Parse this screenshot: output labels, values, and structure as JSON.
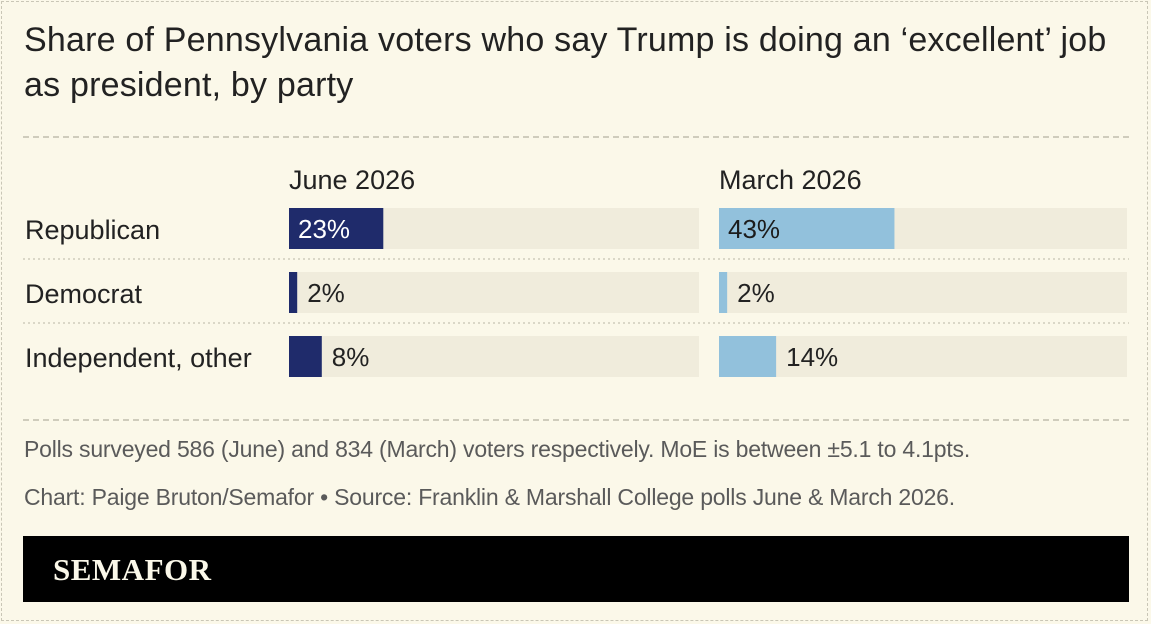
{
  "chart_data": {
    "type": "bar",
    "title": "Share of Pennsylvania voters who say Trump is doing an ‘excellent’ job as president, by party",
    "categories": [
      "Republican",
      "Democrat",
      "Independent, other"
    ],
    "series": [
      {
        "name": "June 2026",
        "values": [
          23,
          2,
          8
        ],
        "color": "#1f2b6b"
      },
      {
        "name": "March 2026",
        "values": [
          43,
          2,
          14
        ],
        "color": "#92c1dc"
      }
    ],
    "value_labels": {
      "June 2026": [
        "23%",
        "2%",
        "8%"
      ],
      "March 2026": [
        "43%",
        "2%",
        "14%"
      ]
    },
    "unit": "%",
    "xlim": [
      0,
      100
    ],
    "track_color": "#f0ecdc",
    "legend": "panel headers above each column"
  },
  "footnotes": {
    "note": "Polls surveyed 586 (June) and 834 (March) voters respectively. MoE is between ±5.1 to 4.1pts.",
    "credit": "Chart: Paige Bruton/Semafor • Source: Franklin & Marshall College polls June & March 2026."
  },
  "brand": {
    "name": "SEMAFOR",
    "bar_color": "#000000",
    "text_color": "#fbf8e9"
  }
}
